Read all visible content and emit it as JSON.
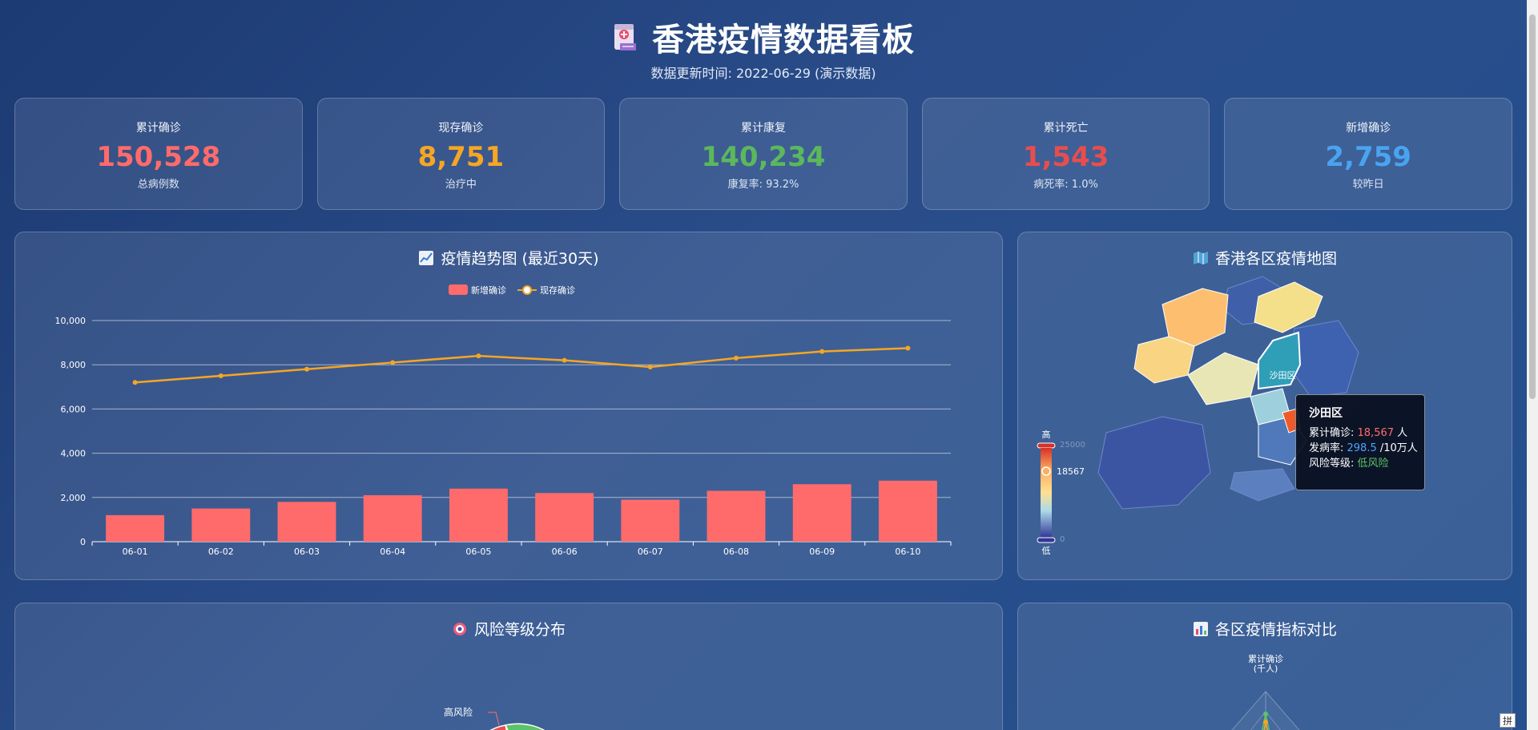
{
  "header": {
    "title": "香港疫情数据看板",
    "subtitle": "数据更新时间: 2022-06-29 (演示数据)"
  },
  "cards": [
    {
      "label": "累计确诊",
      "value": "150,528",
      "sub": "总病例数",
      "color": "#ff6b6b"
    },
    {
      "label": "现存确诊",
      "value": "8,751",
      "sub": "治疗中",
      "color": "#f6a623"
    },
    {
      "label": "累计康复",
      "value": "140,234",
      "sub": "康复率: 93.2%",
      "color": "#5cb85c"
    },
    {
      "label": "累计死亡",
      "value": "1,543",
      "sub": "病死率: 1.0%",
      "color": "#e84d4d"
    },
    {
      "label": "新增确诊",
      "value": "2,759",
      "sub": "较昨日",
      "color": "#4aa3f0"
    }
  ],
  "panels": {
    "trend_title": "疫情趋势图 (最近30天)",
    "map_title": "香港各区疫情地图",
    "risk_title": "风险等级分布",
    "compare_title": "各区疫情指标对比"
  },
  "chart_data": [
    {
      "type": "bar",
      "categories": [
        "06-01",
        "06-02",
        "06-03",
        "06-04",
        "06-05",
        "06-06",
        "06-07",
        "06-08",
        "06-09",
        "06-10"
      ],
      "series": [
        {
          "name": "新增确诊",
          "type": "bar",
          "values": [
            1200,
            1500,
            1800,
            2100,
            2400,
            2200,
            1900,
            2300,
            2600,
            2759
          ],
          "color": "#ff6b6b"
        },
        {
          "name": "现存确诊",
          "type": "line",
          "values": [
            7200,
            7500,
            7800,
            8100,
            8400,
            8200,
            7900,
            8300,
            8600,
            8751
          ],
          "color": "#f6a623"
        }
      ],
      "ylim": [
        0,
        10000
      ],
      "yticks": [
        "0",
        "2,000",
        "4,000",
        "6,000",
        "8,000",
        "10,000"
      ],
      "grid": true,
      "legend": "top-center"
    },
    {
      "type": "map",
      "visual_map": {
        "high_label": "高",
        "low_label": "低",
        "max": "25000",
        "min": "0",
        "current": "18567"
      },
      "selected_label": "沙田区",
      "tooltip": {
        "title": "沙田区",
        "line1_prefix": "累计确诊: ",
        "line1_value": "18,567",
        "line1_unit": " 人",
        "line2_prefix": "发病率: ",
        "line2_value": "298.5",
        "line2_unit": " /10万人",
        "line3_prefix": "风险等级: ",
        "line3_value": "低风险"
      }
    },
    {
      "type": "pie",
      "visible_labels": [
        "高风险"
      ]
    },
    {
      "type": "radar",
      "indicator_label_line1": "累计确诊",
      "indicator_label_line2": "(千人)"
    }
  ],
  "ime": "拼"
}
